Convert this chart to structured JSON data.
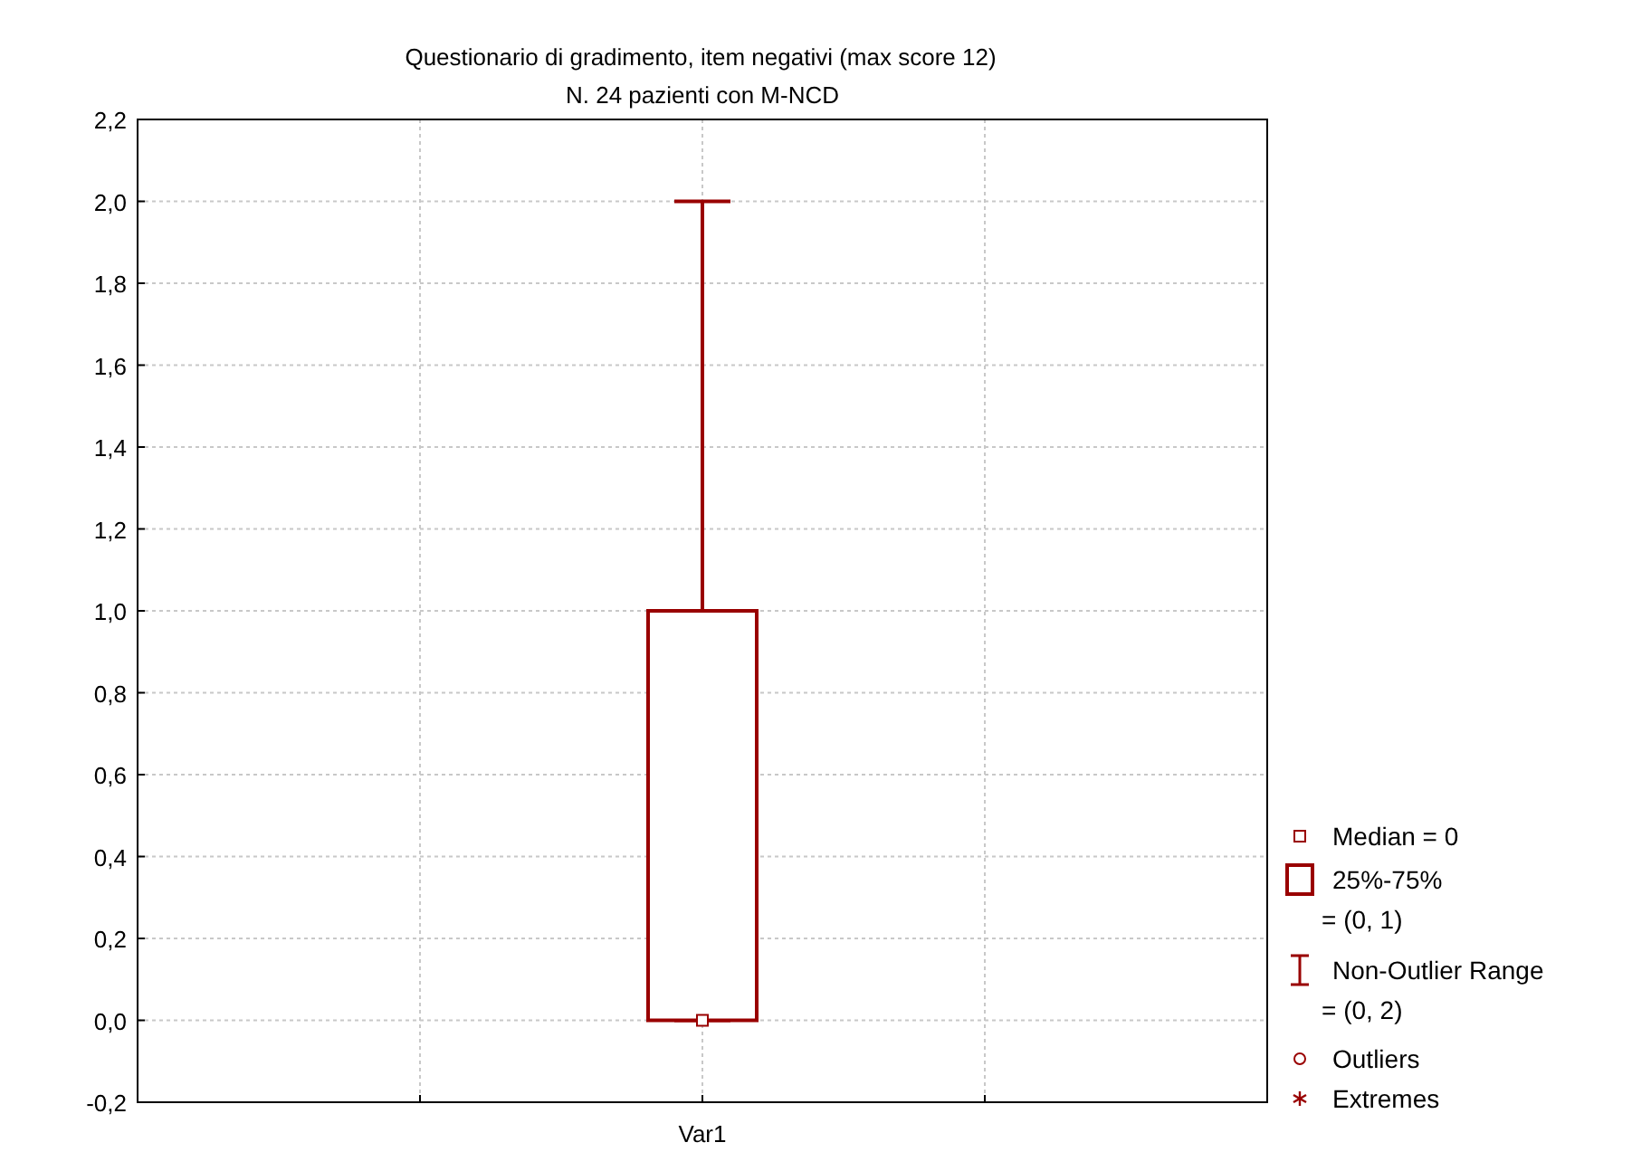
{
  "chart_data": {
    "type": "box",
    "title": "Questionario di gradimento, item negativi (max score 12)",
    "subtitle": "N. 24 pazienti con M-NCD",
    "categories": [
      "Var1"
    ],
    "boxes": [
      {
        "low": 0,
        "q1": 0,
        "median": 0,
        "q3": 1,
        "high": 2
      }
    ],
    "color": "#990000",
    "ylim": [
      -0.2,
      2.2
    ],
    "yticks": [
      {
        "value": -0.2,
        "label": "-0,2"
      },
      {
        "value": 0,
        "label": "0,0"
      },
      {
        "value": 0.2,
        "label": "0,2"
      },
      {
        "value": 0.4,
        "label": "0,4"
      },
      {
        "value": 0.6,
        "label": "0,6"
      },
      {
        "value": 0.8,
        "label": "0,8"
      },
      {
        "value": 1,
        "label": "1,0"
      },
      {
        "value": 1.2,
        "label": "1,2"
      },
      {
        "value": 1.4,
        "label": "1,4"
      },
      {
        "value": 1.6,
        "label": "1,6"
      },
      {
        "value": 1.8,
        "label": "1,8"
      },
      {
        "value": 2,
        "label": "2,0"
      },
      {
        "value": 2.2,
        "label": "2,2"
      }
    ],
    "grid": true,
    "annotations": [
      "Median = 0",
      "25%-75%\n= (0, 1)",
      "Non-Outlier Range\n= (0, 2)",
      "Outliers",
      "Extremes"
    ]
  }
}
